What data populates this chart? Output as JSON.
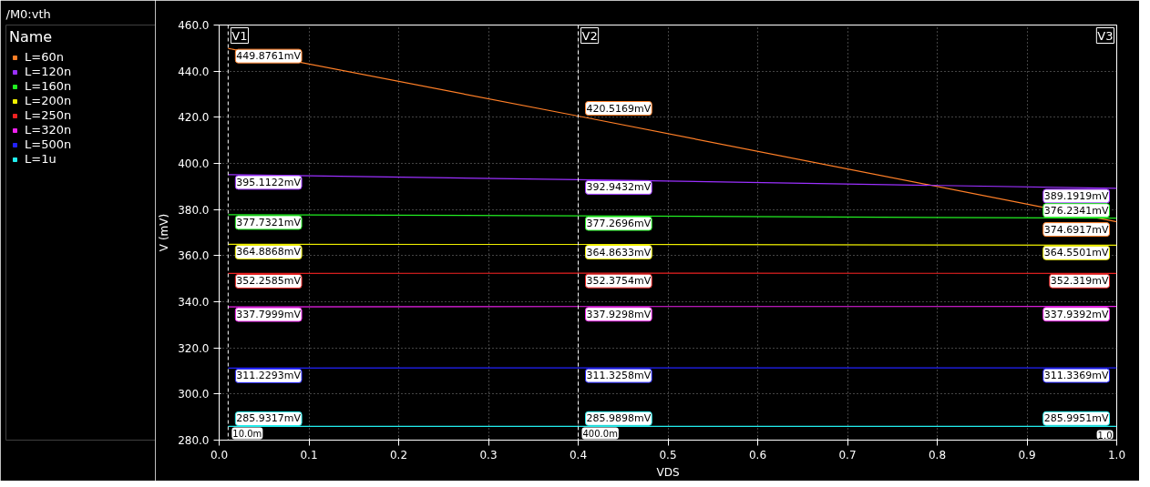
{
  "chart_data": {
    "type": "line",
    "legend_title": "Name",
    "subtitle": "/M0:vth",
    "xlabel": "VDS",
    "ylabel": "V (mV)",
    "x": [
      0.01,
      0.4,
      1.0
    ],
    "series": [
      {
        "name": "L=60n",
        "color": "#ff7f27",
        "values": [
          449.8761,
          420.5169,
          374.6917
        ],
        "value_labels": [
          "449.8761mV",
          "420.5169mV",
          "374.6917mV"
        ]
      },
      {
        "name": "L=120n",
        "color": "#9b30ff",
        "values": [
          395.1122,
          392.9432,
          389.1919
        ],
        "value_labels": [
          "395.1122mV",
          "392.9432mV",
          "389.1919mV"
        ]
      },
      {
        "name": "L=160n",
        "color": "#22ee22",
        "values": [
          377.7321,
          377.2696,
          376.2341
        ],
        "value_labels": [
          "377.7321mV",
          "377.2696mV",
          "376.2341mV"
        ]
      },
      {
        "name": "L=200n",
        "color": "#f0f000",
        "values": [
          364.8868,
          364.8633,
          364.5501
        ],
        "value_labels": [
          "364.8868mV",
          "364.8633mV",
          "364.5501mV"
        ]
      },
      {
        "name": "L=250n",
        "color": "#ee2222",
        "values": [
          352.2585,
          352.3754,
          352.319
        ],
        "value_labels": [
          "352.2585mV",
          "352.3754mV",
          "352.319mV"
        ]
      },
      {
        "name": "L=320n",
        "color": "#ee22ee",
        "values": [
          337.7999,
          337.9298,
          337.9392
        ],
        "value_labels": [
          "337.7999mV",
          "337.9298mV",
          "337.9392mV"
        ]
      },
      {
        "name": "L=500n",
        "color": "#2222ff",
        "values": [
          311.2293,
          311.3258,
          311.3369
        ],
        "value_labels": [
          "311.2293mV",
          "311.3258mV",
          "311.3369mV"
        ]
      },
      {
        "name": "L=1u",
        "color": "#22eeee",
        "values": [
          285.9317,
          285.9898,
          285.9951
        ],
        "value_labels": [
          "285.9317mV",
          "285.9898mV",
          "285.9951mV"
        ]
      }
    ],
    "xlim": [
      0,
      1
    ],
    "ylim": [
      280,
      460
    ],
    "xticks": [
      {
        "value": 0,
        "label": "0.0"
      },
      0.1,
      0.2,
      0.3,
      0.4,
      0.5,
      0.6,
      0.7,
      0.8,
      0.9,
      {
        "value": 1,
        "label": "1.0"
      }
    ],
    "yticks": [
      {
        "value": 280,
        "label": "280.0"
      },
      {
        "value": 300,
        "label": "300.0"
      },
      {
        "value": 320,
        "label": "320.0"
      },
      {
        "value": 340,
        "label": "340.0"
      },
      {
        "value": 360,
        "label": "360.0"
      },
      {
        "value": 380,
        "label": "380.0"
      },
      {
        "value": 400,
        "label": "400.0"
      },
      {
        "value": 420,
        "label": "420.0"
      },
      {
        "value": 440,
        "label": "440.0"
      },
      {
        "value": 460,
        "label": "460.0"
      }
    ],
    "ref_lines": [
      {
        "axis": "x",
        "value": 0.01,
        "label": "V1",
        "line_style": "dashed",
        "color": "#ffffff"
      },
      {
        "axis": "x",
        "value": 0.4,
        "label": "V2",
        "line_style": "dashed",
        "color": "#ffffff"
      },
      {
        "axis": "x",
        "value": 1.0,
        "label": "V3",
        "line_style": "dashed",
        "color": "#ffffff"
      }
    ],
    "annotations": [
      {
        "text": "10.0m",
        "x": 0.01,
        "y": 280
      },
      {
        "text": "400.0m",
        "x": 0.4,
        "y": 280
      },
      {
        "text": "1.0",
        "x": 1.0,
        "y": 280
      }
    ],
    "grid": true,
    "legend": "left"
  }
}
